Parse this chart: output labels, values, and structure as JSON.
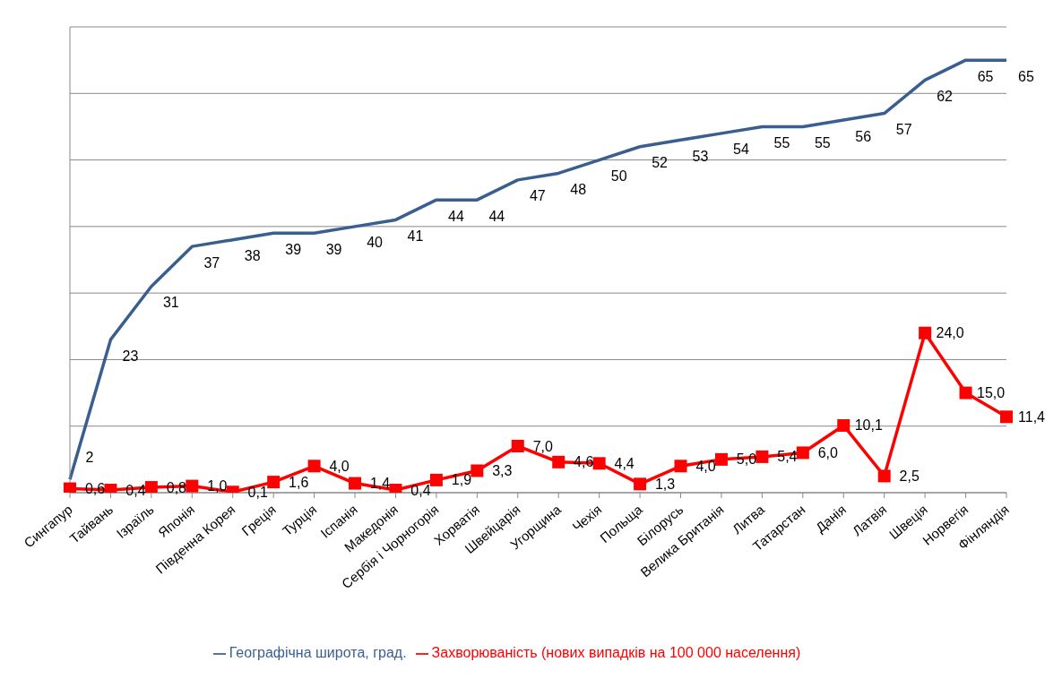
{
  "chart_data": {
    "type": "line",
    "categories": [
      "Сингапур",
      "Тайвань",
      "Ізраїль",
      "Японія",
      "Південна Корея",
      "Греція",
      "Турція",
      "Іспанія",
      "Македонія",
      "Сербія і Чорногорія",
      "Хорватія",
      "Швейцарія",
      "Угорщина",
      "Чехія",
      "Польща",
      "Білорусь",
      "Велика Британія",
      "Литва",
      "Татарстан",
      "Данія",
      "Латвія",
      "Швеція",
      "Норвегія",
      "Фінляндія"
    ],
    "ylim": [
      0,
      70
    ],
    "yticks": [
      {
        "value": 0,
        "label": null
      },
      {
        "value": 10,
        "label": null
      },
      {
        "value": 20,
        "label": null
      },
      {
        "value": 30,
        "label": null
      },
      {
        "value": 40,
        "label": null
      },
      {
        "value": 50,
        "label": null
      },
      {
        "value": 60,
        "label": null
      },
      {
        "value": 70,
        "label": null
      }
    ],
    "tick_labels": "x",
    "grid": "y",
    "legend": "bottom",
    "series": [
      {
        "name": "Географічна широта, град.",
        "color": "#3a5f8f",
        "marker": "none",
        "values": [
          2,
          23,
          31,
          37,
          38,
          39,
          39,
          40,
          41,
          44,
          44,
          47,
          48,
          50,
          52,
          53,
          54,
          55,
          55,
          56,
          57,
          62,
          65,
          65
        ],
        "value_labels": [
          "2",
          "23",
          "31",
          "37",
          "38",
          "39",
          "39",
          "40",
          "41",
          "44",
          "44",
          "47",
          "48",
          "50",
          "52",
          "53",
          "54",
          "55",
          "55",
          "56",
          "57",
          "62",
          "65",
          "65"
        ]
      },
      {
        "name": "Захворюваність (нових випадків на 100 000 населення)",
        "color": "#ff0000",
        "marker": "square",
        "values": [
          0.6,
          0.4,
          0.8,
          1.0,
          0.1,
          1.6,
          4.0,
          1.4,
          0.4,
          1.9,
          3.3,
          7.0,
          4.6,
          4.4,
          1.3,
          4.0,
          5.0,
          5.4,
          6.0,
          10.1,
          2.5,
          24.0,
          15.0,
          11.4
        ],
        "value_labels": [
          "0,6",
          "0,4",
          "0,8",
          "1,0",
          "0,1",
          "1,6",
          "4,0",
          "1,4",
          "0,4",
          "1,9",
          "3,3",
          "7,0",
          "4,6",
          "4,4",
          "1,3",
          "4,0",
          "5,0",
          "5,4",
          "6,0",
          "10,1",
          "2,5",
          "24,0",
          "15,0",
          "11,4"
        ]
      }
    ]
  }
}
